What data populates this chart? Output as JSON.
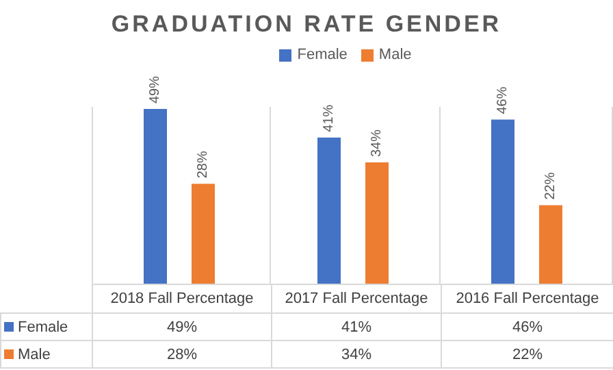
{
  "chart_data": {
    "type": "bar",
    "title": "GRADUATION RATE GENDER",
    "categories": [
      "2018 Fall Percentage",
      "2017 Fall Percentage",
      "2016 Fall Percentage"
    ],
    "series": [
      {
        "name": "Female",
        "color": "#4472c4",
        "values": [
          49,
          41,
          46
        ],
        "value_labels": [
          "49%",
          "41%",
          "46%"
        ]
      },
      {
        "name": "Male",
        "color": "#ed7d31",
        "values": [
          28,
          34,
          22
        ],
        "value_labels": [
          "28%",
          "34%",
          "22%"
        ]
      }
    ],
    "legend": "top"
  }
}
